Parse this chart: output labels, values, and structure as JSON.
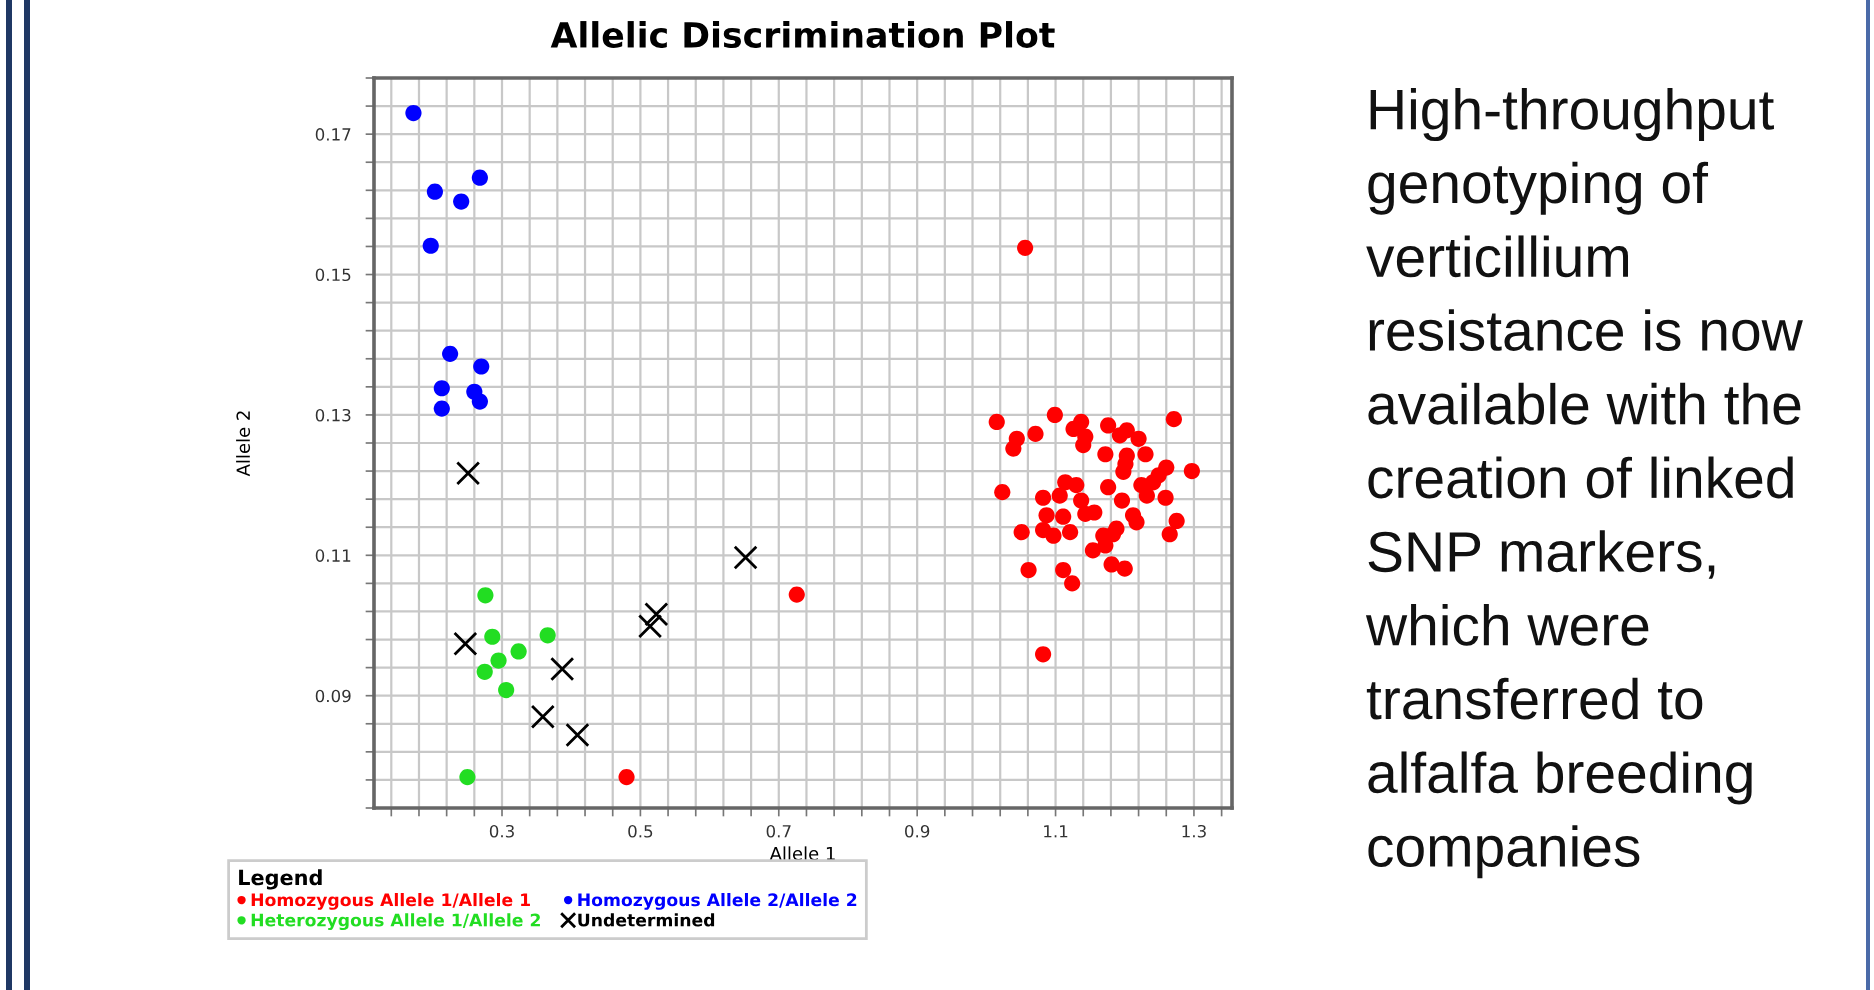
{
  "chart_data": {
    "type": "scatter",
    "title": "Allelic Discrimination Plot",
    "xlabel": "Allele 1",
    "ylabel": "Allele 2",
    "legend_title": "Legend",
    "legend": "bottom",
    "grid": true,
    "xlim": [
      0.115,
      1.355
    ],
    "ylim": [
      0.074,
      0.178
    ],
    "xticks": [
      {
        "value": 0.14,
        "label": null
      },
      {
        "value": 0.18,
        "label": null
      },
      {
        "value": 0.22,
        "label": null
      },
      {
        "value": 0.26,
        "label": null
      },
      0.3,
      {
        "value": 0.34,
        "label": null
      },
      {
        "value": 0.38,
        "label": null
      },
      {
        "value": 0.42,
        "label": null
      },
      {
        "value": 0.46,
        "label": null
      },
      0.5,
      {
        "value": 0.54,
        "label": null
      },
      {
        "value": 0.58,
        "label": null
      },
      {
        "value": 0.62,
        "label": null
      },
      {
        "value": 0.66,
        "label": null
      },
      0.7,
      {
        "value": 0.74,
        "label": null
      },
      {
        "value": 0.78,
        "label": null
      },
      {
        "value": 0.82,
        "label": null
      },
      {
        "value": 0.86,
        "label": null
      },
      0.9,
      {
        "value": 0.94,
        "label": null
      },
      {
        "value": 0.98,
        "label": null
      },
      {
        "value": 1.02,
        "label": null
      },
      {
        "value": 1.06,
        "label": null
      },
      1.1,
      {
        "value": 1.14,
        "label": null
      },
      {
        "value": 1.18,
        "label": null
      },
      {
        "value": 1.22,
        "label": null
      },
      {
        "value": 1.26,
        "label": null
      },
      1.3,
      {
        "value": 1.34,
        "label": null
      }
    ],
    "yticks": [
      {
        "value": 0.074,
        "label": null
      },
      {
        "value": 0.078,
        "label": null
      },
      {
        "value": 0.082,
        "label": null
      },
      {
        "value": 0.086,
        "label": null
      },
      0.09,
      {
        "value": 0.094,
        "label": null
      },
      {
        "value": 0.098,
        "label": null
      },
      {
        "value": 0.102,
        "label": null
      },
      {
        "value": 0.106,
        "label": null
      },
      0.11,
      {
        "value": 0.114,
        "label": null
      },
      {
        "value": 0.118,
        "label": null
      },
      {
        "value": 0.122,
        "label": null
      },
      {
        "value": 0.126,
        "label": null
      },
      0.13,
      {
        "value": 0.134,
        "label": null
      },
      {
        "value": 0.138,
        "label": null
      },
      {
        "value": 0.142,
        "label": null
      },
      {
        "value": 0.146,
        "label": null
      },
      0.15,
      {
        "value": 0.154,
        "label": null
      },
      {
        "value": 0.158,
        "label": null
      },
      {
        "value": 0.162,
        "label": null
      },
      {
        "value": 0.166,
        "label": null
      },
      0.17,
      {
        "value": 0.174,
        "label": null
      },
      {
        "value": 0.178,
        "label": null
      }
    ],
    "series": [
      {
        "name": "Homozygous Allele 1/Allele 1",
        "color": "#ff0000",
        "marker": "circle",
        "x": [
          0.48,
          0.726,
          1.056,
          1.082,
          1.015,
          1.099,
          1.137,
          1.176,
          1.203,
          1.22,
          1.271,
          1.044,
          1.071,
          1.039,
          1.143,
          1.14,
          1.172,
          1.203,
          1.23,
          1.201,
          1.198,
          1.26,
          1.249,
          1.297,
          1.023,
          1.082,
          1.106,
          1.13,
          1.137,
          1.176,
          1.196,
          1.224,
          1.232,
          1.259,
          1.087,
          1.111,
          1.143,
          1.156,
          1.051,
          1.082,
          1.097,
          1.121,
          1.188,
          1.217,
          1.275,
          1.265,
          1.154,
          1.172,
          1.183,
          1.061,
          1.111,
          1.124,
          1.181,
          1.2,
          1.241,
          1.212,
          1.126,
          1.193,
          1.114,
          1.169
        ],
        "values": [
          0.0784,
          0.1044,
          0.1538,
          0.0959,
          0.129,
          0.13,
          0.129,
          0.1285,
          0.1278,
          0.1266,
          0.1294,
          0.1266,
          0.1273,
          0.1252,
          0.1269,
          0.1257,
          0.1244,
          0.1242,
          0.1244,
          0.123,
          0.1219,
          0.1225,
          0.1214,
          0.122,
          0.119,
          0.1182,
          0.1185,
          0.12,
          0.1178,
          0.1197,
          0.1178,
          0.12,
          0.1185,
          0.1182,
          0.1157,
          0.1155,
          0.1159,
          0.1161,
          0.1133,
          0.1136,
          0.1128,
          0.1133,
          0.1138,
          0.1147,
          0.1149,
          0.113,
          0.1107,
          0.1114,
          0.113,
          0.1079,
          0.1079,
          0.106,
          0.1087,
          0.1081,
          0.1204,
          0.1157,
          0.128,
          0.1271,
          0.1204,
          0.1128
        ]
      },
      {
        "name": "Homozygous Allele 2/Allele 2",
        "color": "#0000ff",
        "marker": "circle",
        "x": [
          0.172,
          0.203,
          0.241,
          0.268,
          0.197,
          0.225,
          0.27,
          0.213,
          0.26,
          0.268,
          0.213
        ],
        "values": [
          0.173,
          0.1618,
          0.1604,
          0.1638,
          0.1541,
          0.1387,
          0.1369,
          0.1338,
          0.1333,
          0.1319,
          0.1309
        ]
      },
      {
        "name": "Heterozygous Allele 1/Allele 2",
        "color": "#22dd22",
        "marker": "circle",
        "x": [
          0.276,
          0.286,
          0.366,
          0.324,
          0.295,
          0.275,
          0.306,
          0.25
        ],
        "values": [
          0.1043,
          0.0984,
          0.0986,
          0.0963,
          0.095,
          0.0934,
          0.0908,
          0.0784
        ]
      },
      {
        "name": "Undetermined",
        "color": "#000000",
        "marker": "cross",
        "x": [
          0.251,
          0.247,
          0.387,
          0.359,
          0.409,
          0.514,
          0.523,
          0.652
        ],
        "values": [
          0.1217,
          0.0974,
          0.0938,
          0.087,
          0.0844,
          0.0999,
          0.1016,
          0.1097
        ]
      }
    ],
    "annotations": [
      "High-throughput\ngenotyping of\nverticillium\nresistance is now\navailable with the\ncreation of linked\nSNP markers,\nwhich were\ntransferred to\nalfalfa breeding\ncompanies"
    ]
  }
}
